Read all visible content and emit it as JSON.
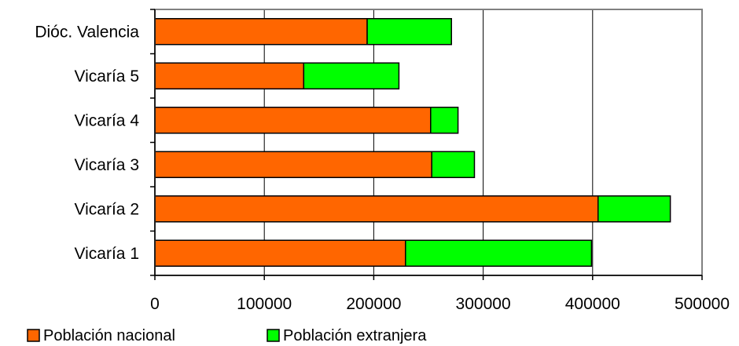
{
  "chart_data": {
    "type": "bar",
    "orientation": "horizontal",
    "stacked": true,
    "categories": [
      "Vicaría 1",
      "Vicaría 2",
      "Vicaría 3",
      "Vicaría 4",
      "Vicaría 5",
      "Dióc. Valencia"
    ],
    "series": [
      {
        "name": "Población nacional",
        "color": "#ff6600",
        "values": [
          229000,
          405000,
          253000,
          252000,
          136000,
          194000
        ]
      },
      {
        "name": "Población extranjera",
        "color": "#00ff00",
        "values": [
          170000,
          66000,
          39000,
          25000,
          87000,
          77000
        ]
      }
    ],
    "xlim": [
      0,
      500000
    ],
    "xticks": [
      0,
      100000,
      200000,
      300000,
      400000,
      500000
    ],
    "xtick_labels": [
      "0",
      "100000",
      "200000",
      "300000",
      "400000",
      "500000"
    ],
    "grid": "vertical",
    "legend_position": "bottom-left"
  }
}
